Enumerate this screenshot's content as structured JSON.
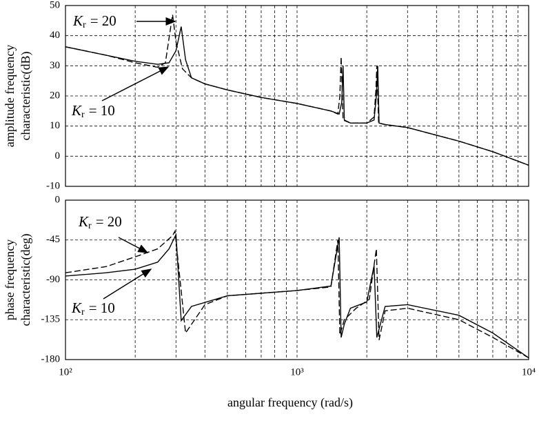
{
  "chart_data": [
    {
      "type": "line",
      "log_x": true,
      "grid": true,
      "ylabel": [
        "amplitude frequency",
        "characteristic(dB)"
      ],
      "xlim": [
        100,
        10000
      ],
      "ylim": [
        -10,
        50
      ],
      "yticks": [
        50,
        40,
        30,
        20,
        10,
        0,
        -10
      ],
      "xticks": [
        {
          "value": 100,
          "label": "10²"
        },
        {
          "value": 1000,
          "label": "10³"
        },
        {
          "value": 10000,
          "label": "10⁴"
        }
      ],
      "annotations": [
        {
          "symbol": "K",
          "subscript": "r",
          "text": "= 20"
        },
        {
          "symbol": "K",
          "subscript": "r",
          "text": "= 10"
        }
      ],
      "series": [
        {
          "color": "#000000",
          "dash": true,
          "x": [
            100,
            150,
            200,
            250,
            270,
            290,
            300,
            320,
            350,
            400,
            500,
            700,
            1000,
            1400,
            1500,
            1530,
            1550,
            1580,
            1700,
            2000,
            2150,
            2190,
            2210,
            2250,
            2400,
            3000,
            5000,
            7000,
            10000
          ],
          "values": [
            36.3,
            33.5,
            31,
            29.5,
            31,
            47,
            38,
            29,
            26,
            24,
            22,
            19.5,
            17.5,
            15,
            14,
            20,
            33,
            12,
            11,
            11,
            13,
            22,
            30,
            11,
            10.5,
            9.5,
            5,
            1.5,
            -3
          ]
        },
        {
          "color": "#000000",
          "dash": false,
          "x": [
            100,
            150,
            200,
            250,
            280,
            300,
            316,
            330,
            350,
            400,
            500,
            700,
            1000,
            1400,
            1520,
            1560,
            1580,
            1600,
            1700,
            2000,
            2150,
            2200,
            2230,
            2260,
            2400,
            3000,
            5000,
            7000,
            10000
          ],
          "values": [
            36.3,
            33.5,
            31.5,
            30.5,
            31,
            35,
            43,
            32,
            26,
            24,
            22,
            19.5,
            17.5,
            15,
            14,
            18,
            30,
            12,
            11,
            11,
            12,
            20,
            30,
            11,
            10.5,
            9.5,
            5,
            1.5,
            -3
          ]
        }
      ]
    },
    {
      "type": "line",
      "log_x": true,
      "grid": true,
      "ylabel": [
        "phase frequency",
        "characteristic(deg)"
      ],
      "xlabel": "angular frequency (rad/s)",
      "xlim": [
        100,
        10000
      ],
      "ylim": [
        -180,
        0
      ],
      "yticks": [
        0,
        -45,
        -90,
        -135,
        -180
      ],
      "xticks": [
        {
          "value": 100,
          "label": "10²"
        },
        {
          "value": 1000,
          "label": "10³"
        },
        {
          "value": 10000,
          "label": "10⁴"
        }
      ],
      "annotations": [
        {
          "symbol": "K",
          "subscript": "r",
          "text": "= 20"
        },
        {
          "symbol": "K",
          "subscript": "r",
          "text": "= 10"
        }
      ],
      "series": [
        {
          "color": "#000000",
          "dash": true,
          "x": [
            100,
            150,
            200,
            250,
            290,
            297,
            330,
            400,
            500,
            1000,
            1400,
            1500,
            1530,
            1600,
            1800,
            2050,
            2200,
            2260,
            2400,
            3000,
            5000,
            7000,
            10000
          ],
          "values": [
            -82,
            -75,
            -64,
            -55,
            -40,
            -35,
            -150,
            -118,
            -108,
            -102,
            -98,
            -45,
            -152,
            -135,
            -122,
            -112,
            -55,
            -158,
            -125,
            -122,
            -135,
            -155,
            -178
          ]
        },
        {
          "color": "#000000",
          "dash": false,
          "x": [
            100,
            150,
            200,
            250,
            280,
            300,
            316,
            350,
            500,
            1000,
            1400,
            1520,
            1550,
            1600,
            1700,
            2000,
            2150,
            2210,
            2400,
            3000,
            5000,
            7000,
            10000
          ],
          "values": [
            -85.7,
            -82,
            -78,
            -70,
            -55,
            -39,
            -136,
            -120,
            -108,
            -102,
            -97,
            -42,
            -155,
            -140,
            -122,
            -115,
            -74,
            -155,
            -120,
            -118,
            -130,
            -150,
            -178
          ]
        }
      ]
    }
  ]
}
